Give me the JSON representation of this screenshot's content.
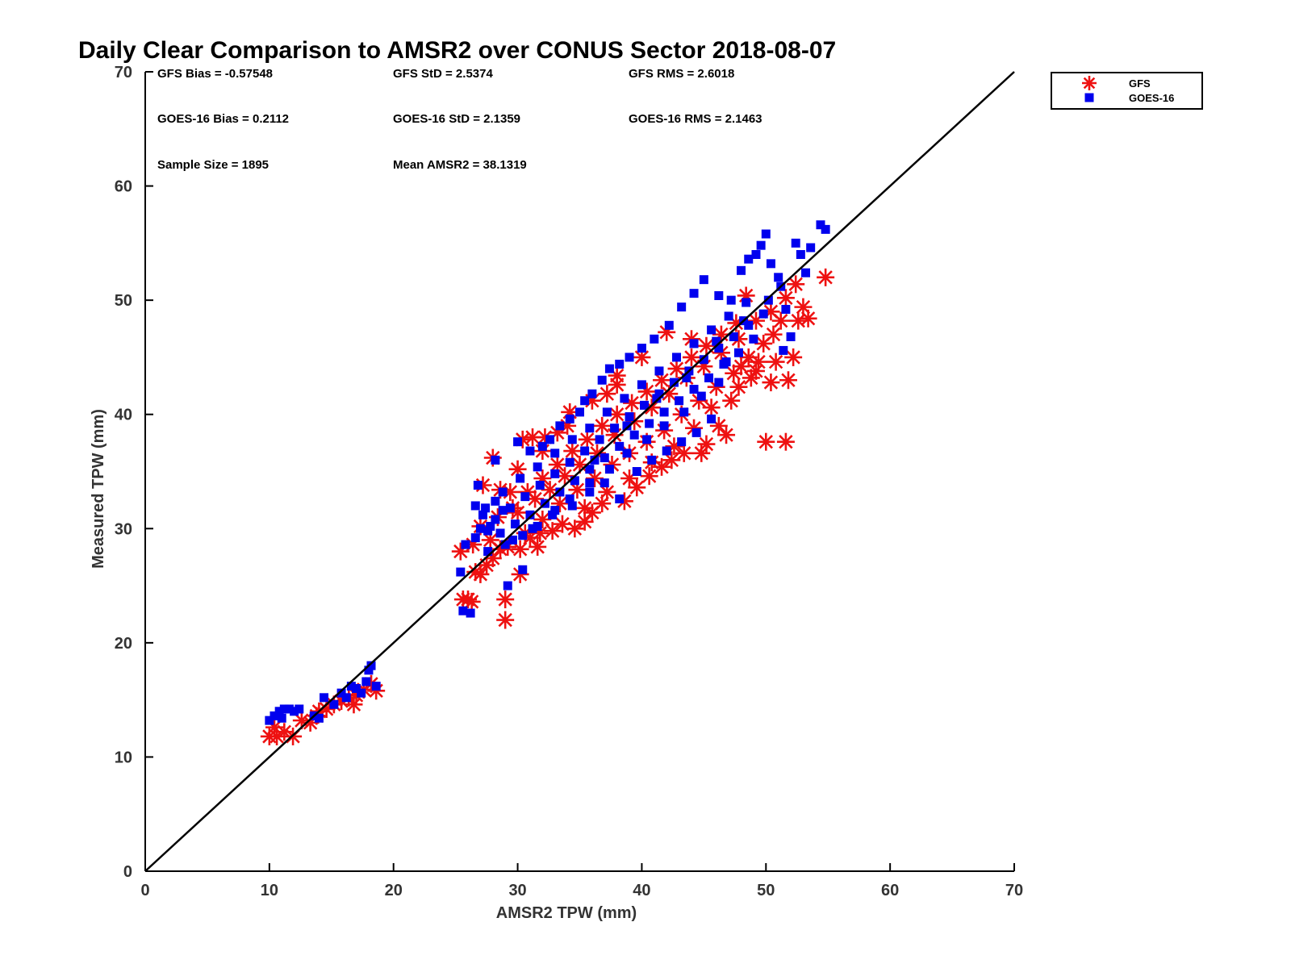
{
  "chart_data": {
    "type": "scatter",
    "title": "Daily Clear Comparison to AMSR2 over CONUS Sector 2018-08-07",
    "xlabel": "AMSR2 TPW (mm)",
    "ylabel": "Measured TPW (mm)",
    "xlim": [
      0,
      70
    ],
    "ylim": [
      0,
      70
    ],
    "xticks": [
      "0",
      "10",
      "20",
      "30",
      "40",
      "50",
      "60",
      "70"
    ],
    "yticks": [
      "0",
      "10",
      "20",
      "30",
      "40",
      "50",
      "60",
      "70"
    ],
    "reference_line": "y = x",
    "legend_position": "outside-top-right",
    "stats": [
      [
        "GFS Bias = -0.57548",
        "GFS StD = 2.5374",
        "GFS RMS = 2.6018"
      ],
      [
        "GOES-16 Bias = 0.2112",
        "GOES-16 StD = 2.1359",
        "GOES-16 RMS = 2.1463"
      ],
      [
        "Sample Size = 1895",
        "Mean AMSR2 = 38.1319",
        ""
      ]
    ],
    "series": [
      {
        "name": "GFS",
        "marker": "asterisk",
        "color": "#ee1111",
        "points": [
          [
            10,
            11.8
          ],
          [
            10.6,
            11.8
          ],
          [
            11.2,
            12.2
          ],
          [
            11.9,
            11.8
          ],
          [
            12.6,
            13.2
          ],
          [
            13.3,
            13.0
          ],
          [
            14.0,
            14.0
          ],
          [
            14.6,
            14.2
          ],
          [
            15.2,
            14.6
          ],
          [
            15.8,
            14.9
          ],
          [
            16.4,
            15.2
          ],
          [
            17.0,
            15.4
          ],
          [
            17.6,
            15.9
          ],
          [
            18.2,
            16.4
          ],
          [
            18.6,
            15.8
          ],
          [
            10.4,
            12.6
          ],
          [
            16.8,
            14.6
          ],
          [
            13.8,
            13.6
          ],
          [
            25.4,
            28.0
          ],
          [
            25.6,
            23.8
          ],
          [
            26.0,
            23.8
          ],
          [
            26.3,
            23.6
          ],
          [
            26.6,
            26.2
          ],
          [
            27.0,
            26.0
          ],
          [
            27.5,
            26.8
          ],
          [
            27.2,
            33.8
          ],
          [
            28.0,
            36.2
          ],
          [
            28.6,
            28.2
          ],
          [
            29.0,
            23.8
          ],
          [
            29.0,
            22.0
          ],
          [
            29.4,
            33.2
          ],
          [
            30.2,
            26.0
          ],
          [
            30.4,
            37.8
          ],
          [
            31.0,
            29.2
          ],
          [
            31.2,
            38.0
          ],
          [
            31.6,
            28.4
          ],
          [
            32.2,
            38.0
          ],
          [
            32.8,
            29.8
          ],
          [
            33.2,
            38.4
          ],
          [
            34.2,
            40.2
          ],
          [
            34.6,
            30.0
          ],
          [
            35.4,
            30.6
          ],
          [
            36.0,
            31.4
          ],
          [
            36.8,
            32.2
          ],
          [
            37.2,
            41.8
          ],
          [
            38.0,
            42.6
          ],
          [
            38.6,
            32.4
          ],
          [
            39.6,
            33.6
          ],
          [
            40.6,
            34.6
          ],
          [
            41.6,
            35.4
          ],
          [
            42.4,
            36.0
          ],
          [
            43.4,
            36.6
          ],
          [
            44.0,
            46.6
          ],
          [
            44.8,
            36.6
          ],
          [
            45.2,
            37.4
          ],
          [
            45.6,
            40.6
          ],
          [
            46.2,
            39.0
          ],
          [
            46.8,
            38.2
          ],
          [
            47.2,
            41.2
          ],
          [
            47.8,
            42.4
          ],
          [
            48.4,
            50.4
          ],
          [
            48.8,
            43.2
          ],
          [
            49.2,
            43.8
          ],
          [
            50.0,
            37.6
          ],
          [
            50.4,
            42.8
          ],
          [
            50.8,
            44.6
          ],
          [
            51.2,
            48.2
          ],
          [
            51.6,
            37.6
          ],
          [
            51.8,
            43.0
          ],
          [
            52.2,
            45.0
          ],
          [
            52.6,
            48.2
          ],
          [
            53.0,
            49.4
          ],
          [
            53.4,
            48.4
          ],
          [
            54.8,
            52.0
          ],
          [
            27.0,
            30.2
          ],
          [
            28.4,
            31.0
          ],
          [
            29.6,
            31.8
          ],
          [
            30.8,
            33.2
          ],
          [
            32.0,
            34.4
          ],
          [
            33.2,
            35.6
          ],
          [
            34.4,
            36.8
          ],
          [
            35.6,
            37.8
          ],
          [
            36.8,
            39.0
          ],
          [
            38.0,
            40.0
          ],
          [
            39.2,
            41.0
          ],
          [
            40.4,
            42.0
          ],
          [
            41.6,
            43.0
          ],
          [
            42.8,
            44.0
          ],
          [
            44.0,
            45.0
          ],
          [
            45.2,
            46.0
          ],
          [
            46.4,
            47.0
          ],
          [
            47.6,
            48.0
          ],
          [
            28.0,
            27.4
          ],
          [
            29.2,
            28.4
          ],
          [
            30.6,
            29.6
          ],
          [
            32.0,
            30.8
          ],
          [
            33.4,
            32.2
          ],
          [
            34.8,
            33.4
          ],
          [
            36.2,
            34.4
          ],
          [
            37.6,
            35.6
          ],
          [
            39.0,
            36.6
          ],
          [
            40.4,
            37.6
          ],
          [
            41.8,
            38.6
          ],
          [
            43.2,
            40.0
          ],
          [
            44.6,
            41.2
          ],
          [
            46.0,
            42.4
          ],
          [
            47.4,
            43.6
          ],
          [
            48.6,
            45.0
          ],
          [
            49.8,
            46.2
          ],
          [
            26.4,
            28.6
          ],
          [
            27.8,
            29.0
          ],
          [
            30.0,
            31.4
          ],
          [
            31.4,
            32.6
          ],
          [
            32.6,
            33.4
          ],
          [
            33.8,
            34.6
          ],
          [
            35.0,
            35.6
          ],
          [
            36.4,
            36.6
          ],
          [
            37.8,
            38.2
          ],
          [
            39.4,
            39.4
          ],
          [
            40.8,
            40.6
          ],
          [
            42.2,
            41.8
          ],
          [
            43.6,
            43.2
          ],
          [
            45.0,
            44.2
          ],
          [
            46.4,
            45.4
          ],
          [
            47.8,
            46.6
          ],
          [
            49.2,
            48.2
          ],
          [
            50.4,
            49.0
          ],
          [
            51.6,
            50.2
          ],
          [
            52.4,
            51.4
          ],
          [
            42.0,
            47.2
          ],
          [
            40.0,
            45.0
          ],
          [
            38.0,
            43.4
          ],
          [
            36.0,
            41.2
          ],
          [
            34.0,
            39.0
          ],
          [
            32.0,
            36.8
          ],
          [
            30.0,
            35.2
          ],
          [
            28.6,
            33.4
          ],
          [
            44.2,
            38.8
          ],
          [
            42.6,
            37.2
          ],
          [
            40.8,
            35.8
          ],
          [
            39.0,
            34.4
          ],
          [
            37.2,
            33.2
          ],
          [
            35.4,
            31.8
          ],
          [
            33.6,
            30.4
          ],
          [
            31.8,
            29.6
          ],
          [
            30.2,
            28.2
          ],
          [
            50.6,
            47.0
          ],
          [
            49.4,
            44.6
          ],
          [
            48.0,
            44.2
          ]
        ]
      },
      {
        "name": "GOES-16",
        "marker": "square",
        "color": "#0000ee",
        "points": [
          [
            10.0,
            13.2
          ],
          [
            10.4,
            13.6
          ],
          [
            10.8,
            14.0
          ],
          [
            11.2,
            14.2
          ],
          [
            11.6,
            14.2
          ],
          [
            12.0,
            14.0
          ],
          [
            12.4,
            14.2
          ],
          [
            11.0,
            13.4
          ],
          [
            13.6,
            13.6
          ],
          [
            14.0,
            13.4
          ],
          [
            14.4,
            15.2
          ],
          [
            15.2,
            14.6
          ],
          [
            15.8,
            15.6
          ],
          [
            16.2,
            15.2
          ],
          [
            16.6,
            16.2
          ],
          [
            17.0,
            16.0
          ],
          [
            17.4,
            15.6
          ],
          [
            17.8,
            16.6
          ],
          [
            18.0,
            17.6
          ],
          [
            18.2,
            18.0
          ],
          [
            18.6,
            16.2
          ],
          [
            25.4,
            26.2
          ],
          [
            25.6,
            22.8
          ],
          [
            26.2,
            22.6
          ],
          [
            25.8,
            28.6
          ],
          [
            26.6,
            32.0
          ],
          [
            26.8,
            33.8
          ],
          [
            27.2,
            31.2
          ],
          [
            27.6,
            29.8
          ],
          [
            28.2,
            32.4
          ],
          [
            28.2,
            36.0
          ],
          [
            28.8,
            31.6
          ],
          [
            29.2,
            25.0
          ],
          [
            30.0,
            37.6
          ],
          [
            30.4,
            26.4
          ],
          [
            31.0,
            36.8
          ],
          [
            32.0,
            37.2
          ],
          [
            32.6,
            37.8
          ],
          [
            33.4,
            39.0
          ],
          [
            34.2,
            39.6
          ],
          [
            35.0,
            40.2
          ],
          [
            35.4,
            41.2
          ],
          [
            36.0,
            41.8
          ],
          [
            36.8,
            43.0
          ],
          [
            37.4,
            44.0
          ],
          [
            38.2,
            44.4
          ],
          [
            39.0,
            45.0
          ],
          [
            40.0,
            45.8
          ],
          [
            41.0,
            46.6
          ],
          [
            42.2,
            47.8
          ],
          [
            43.2,
            49.4
          ],
          [
            44.2,
            50.6
          ],
          [
            45.0,
            51.8
          ],
          [
            46.2,
            50.4
          ],
          [
            47.2,
            50.0
          ],
          [
            48.0,
            52.6
          ],
          [
            48.6,
            53.6
          ],
          [
            49.2,
            54.0
          ],
          [
            49.6,
            54.8
          ],
          [
            50.0,
            55.8
          ],
          [
            50.4,
            53.2
          ],
          [
            51.0,
            52.0
          ],
          [
            51.6,
            49.2
          ],
          [
            52.0,
            46.8
          ],
          [
            52.4,
            55.0
          ],
          [
            52.8,
            54.0
          ],
          [
            53.2,
            52.4
          ],
          [
            53.6,
            54.6
          ],
          [
            54.4,
            56.6
          ],
          [
            54.8,
            56.2
          ],
          [
            51.4,
            45.6
          ],
          [
            46.8,
            44.6
          ],
          [
            45.6,
            39.6
          ],
          [
            44.4,
            38.4
          ],
          [
            43.2,
            37.6
          ],
          [
            42.0,
            36.8
          ],
          [
            40.8,
            36.0
          ],
          [
            39.6,
            35.0
          ],
          [
            38.2,
            32.6
          ],
          [
            37.0,
            34.0
          ],
          [
            35.8,
            33.2
          ],
          [
            34.4,
            32.0
          ],
          [
            33.0,
            31.6
          ],
          [
            31.6,
            30.2
          ],
          [
            30.4,
            29.4
          ],
          [
            29.0,
            28.6
          ],
          [
            27.6,
            28.0
          ],
          [
            27.0,
            30.0
          ],
          [
            28.2,
            30.8
          ],
          [
            29.4,
            31.8
          ],
          [
            30.6,
            32.8
          ],
          [
            31.8,
            33.8
          ],
          [
            33.0,
            34.8
          ],
          [
            34.2,
            35.8
          ],
          [
            35.4,
            36.8
          ],
          [
            36.6,
            37.8
          ],
          [
            37.8,
            38.8
          ],
          [
            39.0,
            39.8
          ],
          [
            40.2,
            40.8
          ],
          [
            41.4,
            41.8
          ],
          [
            42.6,
            42.8
          ],
          [
            43.8,
            43.8
          ],
          [
            45.0,
            44.8
          ],
          [
            46.2,
            45.8
          ],
          [
            47.4,
            46.8
          ],
          [
            48.6,
            47.8
          ],
          [
            49.8,
            48.8
          ],
          [
            28.6,
            29.6
          ],
          [
            29.8,
            30.4
          ],
          [
            31.0,
            31.2
          ],
          [
            32.2,
            32.2
          ],
          [
            33.4,
            33.2
          ],
          [
            34.6,
            34.2
          ],
          [
            35.8,
            35.2
          ],
          [
            37.0,
            36.2
          ],
          [
            38.2,
            37.2
          ],
          [
            39.4,
            38.2
          ],
          [
            40.6,
            39.2
          ],
          [
            41.8,
            40.2
          ],
          [
            43.0,
            41.2
          ],
          [
            44.2,
            42.2
          ],
          [
            45.4,
            43.2
          ],
          [
            46.6,
            44.4
          ],
          [
            47.8,
            45.4
          ],
          [
            49.0,
            46.6
          ],
          [
            27.4,
            31.8
          ],
          [
            28.8,
            33.2
          ],
          [
            30.2,
            34.4
          ],
          [
            31.6,
            35.4
          ],
          [
            33.0,
            36.6
          ],
          [
            34.4,
            37.8
          ],
          [
            35.8,
            38.8
          ],
          [
            37.2,
            40.2
          ],
          [
            38.6,
            41.4
          ],
          [
            40.0,
            42.6
          ],
          [
            41.4,
            43.8
          ],
          [
            42.8,
            45.0
          ],
          [
            44.2,
            46.2
          ],
          [
            45.6,
            47.4
          ],
          [
            47.0,
            48.6
          ],
          [
            48.4,
            49.8
          ],
          [
            29.6,
            29.0
          ],
          [
            31.2,
            30.0
          ],
          [
            32.8,
            31.2
          ],
          [
            34.2,
            32.6
          ],
          [
            35.8,
            34.0
          ],
          [
            37.4,
            35.2
          ],
          [
            38.8,
            36.6
          ],
          [
            40.4,
            37.8
          ],
          [
            41.8,
            39.0
          ],
          [
            43.4,
            40.2
          ],
          [
            44.8,
            41.6
          ],
          [
            46.2,
            42.8
          ],
          [
            26.6,
            29.2
          ],
          [
            27.8,
            30.2
          ],
          [
            36.2,
            36.0
          ],
          [
            38.8,
            39.0
          ],
          [
            41.2,
            41.4
          ],
          [
            43.6,
            43.2
          ],
          [
            46.0,
            46.4
          ],
          [
            48.2,
            48.2
          ],
          [
            50.2,
            50.0
          ],
          [
            51.2,
            51.2
          ]
        ]
      }
    ]
  }
}
